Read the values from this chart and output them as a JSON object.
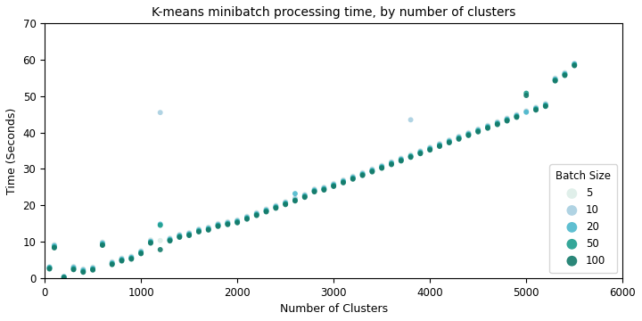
{
  "title": "K-means minibatch processing time, by number of clusters",
  "xlabel": "Number of Clusters",
  "ylabel": "Time (Seconds)",
  "xlim": [
    0,
    6000
  ],
  "ylim": [
    0,
    70
  ],
  "xticks": [
    0,
    1000,
    2000,
    3000,
    4000,
    5000,
    6000
  ],
  "yticks": [
    0,
    10,
    20,
    30,
    40,
    50,
    60,
    70
  ],
  "batch_sizes": [
    5,
    10,
    20,
    50,
    100
  ],
  "batch_colors": [
    "#ddeee8",
    "#a8cfe0",
    "#4db8cc",
    "#1f9e8e",
    "#147a6a"
  ],
  "legend_title": "Batch Size",
  "marker_size": 18,
  "figsize": [
    7.2,
    3.6
  ],
  "dpi": 100,
  "points": {
    "5": [
      [
        50,
        3.1
      ],
      [
        100,
        9.2
      ],
      [
        200,
        0.5
      ],
      [
        300,
        3.2
      ],
      [
        400,
        2.5
      ],
      [
        500,
        3.0
      ],
      [
        600,
        9.9
      ],
      [
        700,
        4.5
      ],
      [
        800,
        5.5
      ],
      [
        900,
        6.0
      ],
      [
        1000,
        7.5
      ],
      [
        1100,
        10.5
      ],
      [
        1200,
        10.3
      ],
      [
        1300,
        11.0
      ],
      [
        1400,
        12.0
      ],
      [
        1500,
        12.5
      ],
      [
        1600,
        13.5
      ],
      [
        1700,
        14.0
      ],
      [
        1800,
        15.0
      ],
      [
        1900,
        15.5
      ],
      [
        2000,
        16.0
      ],
      [
        2100,
        17.0
      ],
      [
        2200,
        18.0
      ],
      [
        2300,
        19.0
      ],
      [
        2400,
        20.0
      ],
      [
        2500,
        21.0
      ],
      [
        2600,
        22.0
      ],
      [
        2700,
        23.0
      ],
      [
        2800,
        24.5
      ],
      [
        2900,
        25.0
      ],
      [
        3000,
        26.0
      ],
      [
        3100,
        27.0
      ],
      [
        3200,
        28.0
      ],
      [
        3300,
        29.0
      ],
      [
        3400,
        30.0
      ],
      [
        3500,
        31.0
      ],
      [
        3600,
        32.0
      ],
      [
        3700,
        33.0
      ],
      [
        3800,
        34.0
      ],
      [
        3900,
        35.0
      ],
      [
        4000,
        36.0
      ],
      [
        4100,
        37.0
      ],
      [
        4200,
        38.0
      ],
      [
        4300,
        39.0
      ],
      [
        4400,
        40.0
      ],
      [
        4500,
        41.0
      ],
      [
        4600,
        42.0
      ],
      [
        4700,
        43.0
      ],
      [
        4800,
        44.0
      ],
      [
        4900,
        45.0
      ],
      [
        5000,
        46.0
      ],
      [
        5100,
        47.0
      ],
      [
        5200,
        48.0
      ],
      [
        5300,
        55.0
      ],
      [
        5400,
        56.5
      ],
      [
        5500,
        58.5
      ]
    ],
    "10": [
      [
        50,
        3.0
      ],
      [
        100,
        9.0
      ],
      [
        200,
        0.4
      ],
      [
        300,
        3.0
      ],
      [
        400,
        2.3
      ],
      [
        500,
        2.8
      ],
      [
        600,
        9.7
      ],
      [
        700,
        4.3
      ],
      [
        800,
        5.3
      ],
      [
        900,
        5.8
      ],
      [
        1000,
        7.3
      ],
      [
        1100,
        10.2
      ],
      [
        1200,
        45.5
      ],
      [
        1300,
        10.8
      ],
      [
        1400,
        11.8
      ],
      [
        1500,
        12.3
      ],
      [
        1600,
        13.3
      ],
      [
        1700,
        13.8
      ],
      [
        1800,
        14.8
      ],
      [
        1900,
        15.3
      ],
      [
        2000,
        15.8
      ],
      [
        2100,
        16.8
      ],
      [
        2200,
        17.8
      ],
      [
        2300,
        18.8
      ],
      [
        2400,
        19.8
      ],
      [
        2500,
        20.8
      ],
      [
        2600,
        21.8
      ],
      [
        2700,
        22.8
      ],
      [
        2800,
        24.3
      ],
      [
        2900,
        24.8
      ],
      [
        3000,
        25.8
      ],
      [
        3100,
        26.8
      ],
      [
        3200,
        27.8
      ],
      [
        3300,
        28.8
      ],
      [
        3400,
        29.8
      ],
      [
        3500,
        30.8
      ],
      [
        3600,
        31.8
      ],
      [
        3700,
        32.8
      ],
      [
        3800,
        43.5
      ],
      [
        3900,
        34.8
      ],
      [
        4000,
        35.8
      ],
      [
        4100,
        36.8
      ],
      [
        4200,
        37.8
      ],
      [
        4300,
        38.8
      ],
      [
        4400,
        39.8
      ],
      [
        4500,
        40.8
      ],
      [
        4600,
        41.8
      ],
      [
        4700,
        42.8
      ],
      [
        4800,
        43.8
      ],
      [
        4900,
        44.8
      ],
      [
        5000,
        45.8
      ],
      [
        5100,
        46.8
      ],
      [
        5200,
        47.8
      ],
      [
        5300,
        54.8
      ],
      [
        5400,
        56.3
      ],
      [
        5500,
        59.0
      ]
    ],
    "20": [
      [
        50,
        2.9
      ],
      [
        100,
        8.8
      ],
      [
        200,
        0.3
      ],
      [
        300,
        2.8
      ],
      [
        400,
        2.1
      ],
      [
        500,
        2.6
      ],
      [
        600,
        9.5
      ],
      [
        700,
        4.1
      ],
      [
        800,
        5.1
      ],
      [
        900,
        5.6
      ],
      [
        1000,
        7.1
      ],
      [
        1100,
        10.0
      ],
      [
        1200,
        14.8
      ],
      [
        1300,
        10.6
      ],
      [
        1400,
        11.6
      ],
      [
        1500,
        12.1
      ],
      [
        1600,
        13.1
      ],
      [
        1700,
        13.6
      ],
      [
        1800,
        14.6
      ],
      [
        1900,
        15.1
      ],
      [
        2000,
        15.6
      ],
      [
        2100,
        16.6
      ],
      [
        2200,
        17.6
      ],
      [
        2300,
        18.6
      ],
      [
        2400,
        19.6
      ],
      [
        2500,
        20.6
      ],
      [
        2600,
        23.2
      ],
      [
        2700,
        22.6
      ],
      [
        2800,
        24.1
      ],
      [
        2900,
        24.6
      ],
      [
        3000,
        25.6
      ],
      [
        3100,
        26.6
      ],
      [
        3200,
        27.6
      ],
      [
        3300,
        28.6
      ],
      [
        3400,
        29.6
      ],
      [
        3500,
        30.6
      ],
      [
        3600,
        31.6
      ],
      [
        3700,
        32.6
      ],
      [
        3800,
        33.6
      ],
      [
        3900,
        34.6
      ],
      [
        4000,
        35.6
      ],
      [
        4100,
        36.6
      ],
      [
        4200,
        37.6
      ],
      [
        4300,
        38.6
      ],
      [
        4400,
        39.6
      ],
      [
        4500,
        40.6
      ],
      [
        4600,
        41.6
      ],
      [
        4700,
        42.6
      ],
      [
        4800,
        43.6
      ],
      [
        4900,
        44.6
      ],
      [
        5000,
        45.6
      ],
      [
        5100,
        46.6
      ],
      [
        5200,
        47.6
      ],
      [
        5300,
        54.6
      ],
      [
        5400,
        56.1
      ],
      [
        5500,
        58.8
      ]
    ],
    "50": [
      [
        50,
        2.7
      ],
      [
        100,
        8.5
      ],
      [
        200,
        0.2
      ],
      [
        300,
        2.5
      ],
      [
        400,
        1.8
      ],
      [
        500,
        2.4
      ],
      [
        600,
        9.2
      ],
      [
        700,
        3.9
      ],
      [
        800,
        4.9
      ],
      [
        900,
        5.4
      ],
      [
        1000,
        6.9
      ],
      [
        1100,
        9.8
      ],
      [
        1200,
        14.5
      ],
      [
        1300,
        10.4
      ],
      [
        1400,
        11.4
      ],
      [
        1500,
        11.9
      ],
      [
        1600,
        12.9
      ],
      [
        1700,
        13.4
      ],
      [
        1800,
        14.4
      ],
      [
        1900,
        14.9
      ],
      [
        2000,
        15.4
      ],
      [
        2100,
        16.4
      ],
      [
        2200,
        17.4
      ],
      [
        2300,
        18.4
      ],
      [
        2400,
        19.4
      ],
      [
        2500,
        20.4
      ],
      [
        2600,
        21.4
      ],
      [
        2700,
        22.4
      ],
      [
        2800,
        23.9
      ],
      [
        2900,
        24.4
      ],
      [
        3000,
        25.4
      ],
      [
        3100,
        26.4
      ],
      [
        3200,
        27.4
      ],
      [
        3300,
        28.4
      ],
      [
        3400,
        29.4
      ],
      [
        3500,
        30.4
      ],
      [
        3600,
        31.4
      ],
      [
        3700,
        32.4
      ],
      [
        3800,
        33.4
      ],
      [
        3900,
        34.4
      ],
      [
        4000,
        35.4
      ],
      [
        4100,
        36.4
      ],
      [
        4200,
        37.4
      ],
      [
        4300,
        38.4
      ],
      [
        4400,
        39.4
      ],
      [
        4500,
        40.4
      ],
      [
        4600,
        41.4
      ],
      [
        4700,
        42.4
      ],
      [
        4800,
        43.4
      ],
      [
        4900,
        44.4
      ],
      [
        5000,
        50.8
      ],
      [
        5100,
        46.4
      ],
      [
        5200,
        47.4
      ],
      [
        5300,
        54.4
      ],
      [
        5400,
        55.9
      ],
      [
        5500,
        58.6
      ]
    ],
    "100": [
      [
        50,
        2.5
      ],
      [
        100,
        8.3
      ],
      [
        200,
        0.1
      ],
      [
        300,
        2.3
      ],
      [
        400,
        1.6
      ],
      [
        500,
        2.2
      ],
      [
        600,
        9.0
      ],
      [
        700,
        3.7
      ],
      [
        800,
        4.7
      ],
      [
        900,
        5.2
      ],
      [
        1000,
        6.7
      ],
      [
        1100,
        9.6
      ],
      [
        1200,
        7.8
      ],
      [
        1300,
        10.2
      ],
      [
        1400,
        11.2
      ],
      [
        1500,
        11.7
      ],
      [
        1600,
        12.7
      ],
      [
        1700,
        13.2
      ],
      [
        1800,
        14.2
      ],
      [
        1900,
        14.7
      ],
      [
        2000,
        15.2
      ],
      [
        2100,
        16.2
      ],
      [
        2200,
        17.2
      ],
      [
        2300,
        18.2
      ],
      [
        2400,
        19.2
      ],
      [
        2500,
        20.2
      ],
      [
        2600,
        21.2
      ],
      [
        2700,
        22.2
      ],
      [
        2800,
        23.7
      ],
      [
        2900,
        24.2
      ],
      [
        3000,
        25.2
      ],
      [
        3100,
        26.2
      ],
      [
        3200,
        27.2
      ],
      [
        3300,
        28.2
      ],
      [
        3400,
        29.2
      ],
      [
        3500,
        30.2
      ],
      [
        3600,
        31.2
      ],
      [
        3700,
        32.2
      ],
      [
        3800,
        33.2
      ],
      [
        3900,
        34.2
      ],
      [
        4000,
        35.2
      ],
      [
        4100,
        36.2
      ],
      [
        4200,
        37.2
      ],
      [
        4300,
        38.2
      ],
      [
        4400,
        39.2
      ],
      [
        4500,
        40.2
      ],
      [
        4600,
        41.2
      ],
      [
        4700,
        42.2
      ],
      [
        4800,
        43.2
      ],
      [
        4900,
        44.2
      ],
      [
        5000,
        50.2
      ],
      [
        5100,
        46.2
      ],
      [
        5200,
        47.2
      ],
      [
        5300,
        54.2
      ],
      [
        5400,
        55.7
      ],
      [
        5500,
        58.4
      ]
    ]
  }
}
